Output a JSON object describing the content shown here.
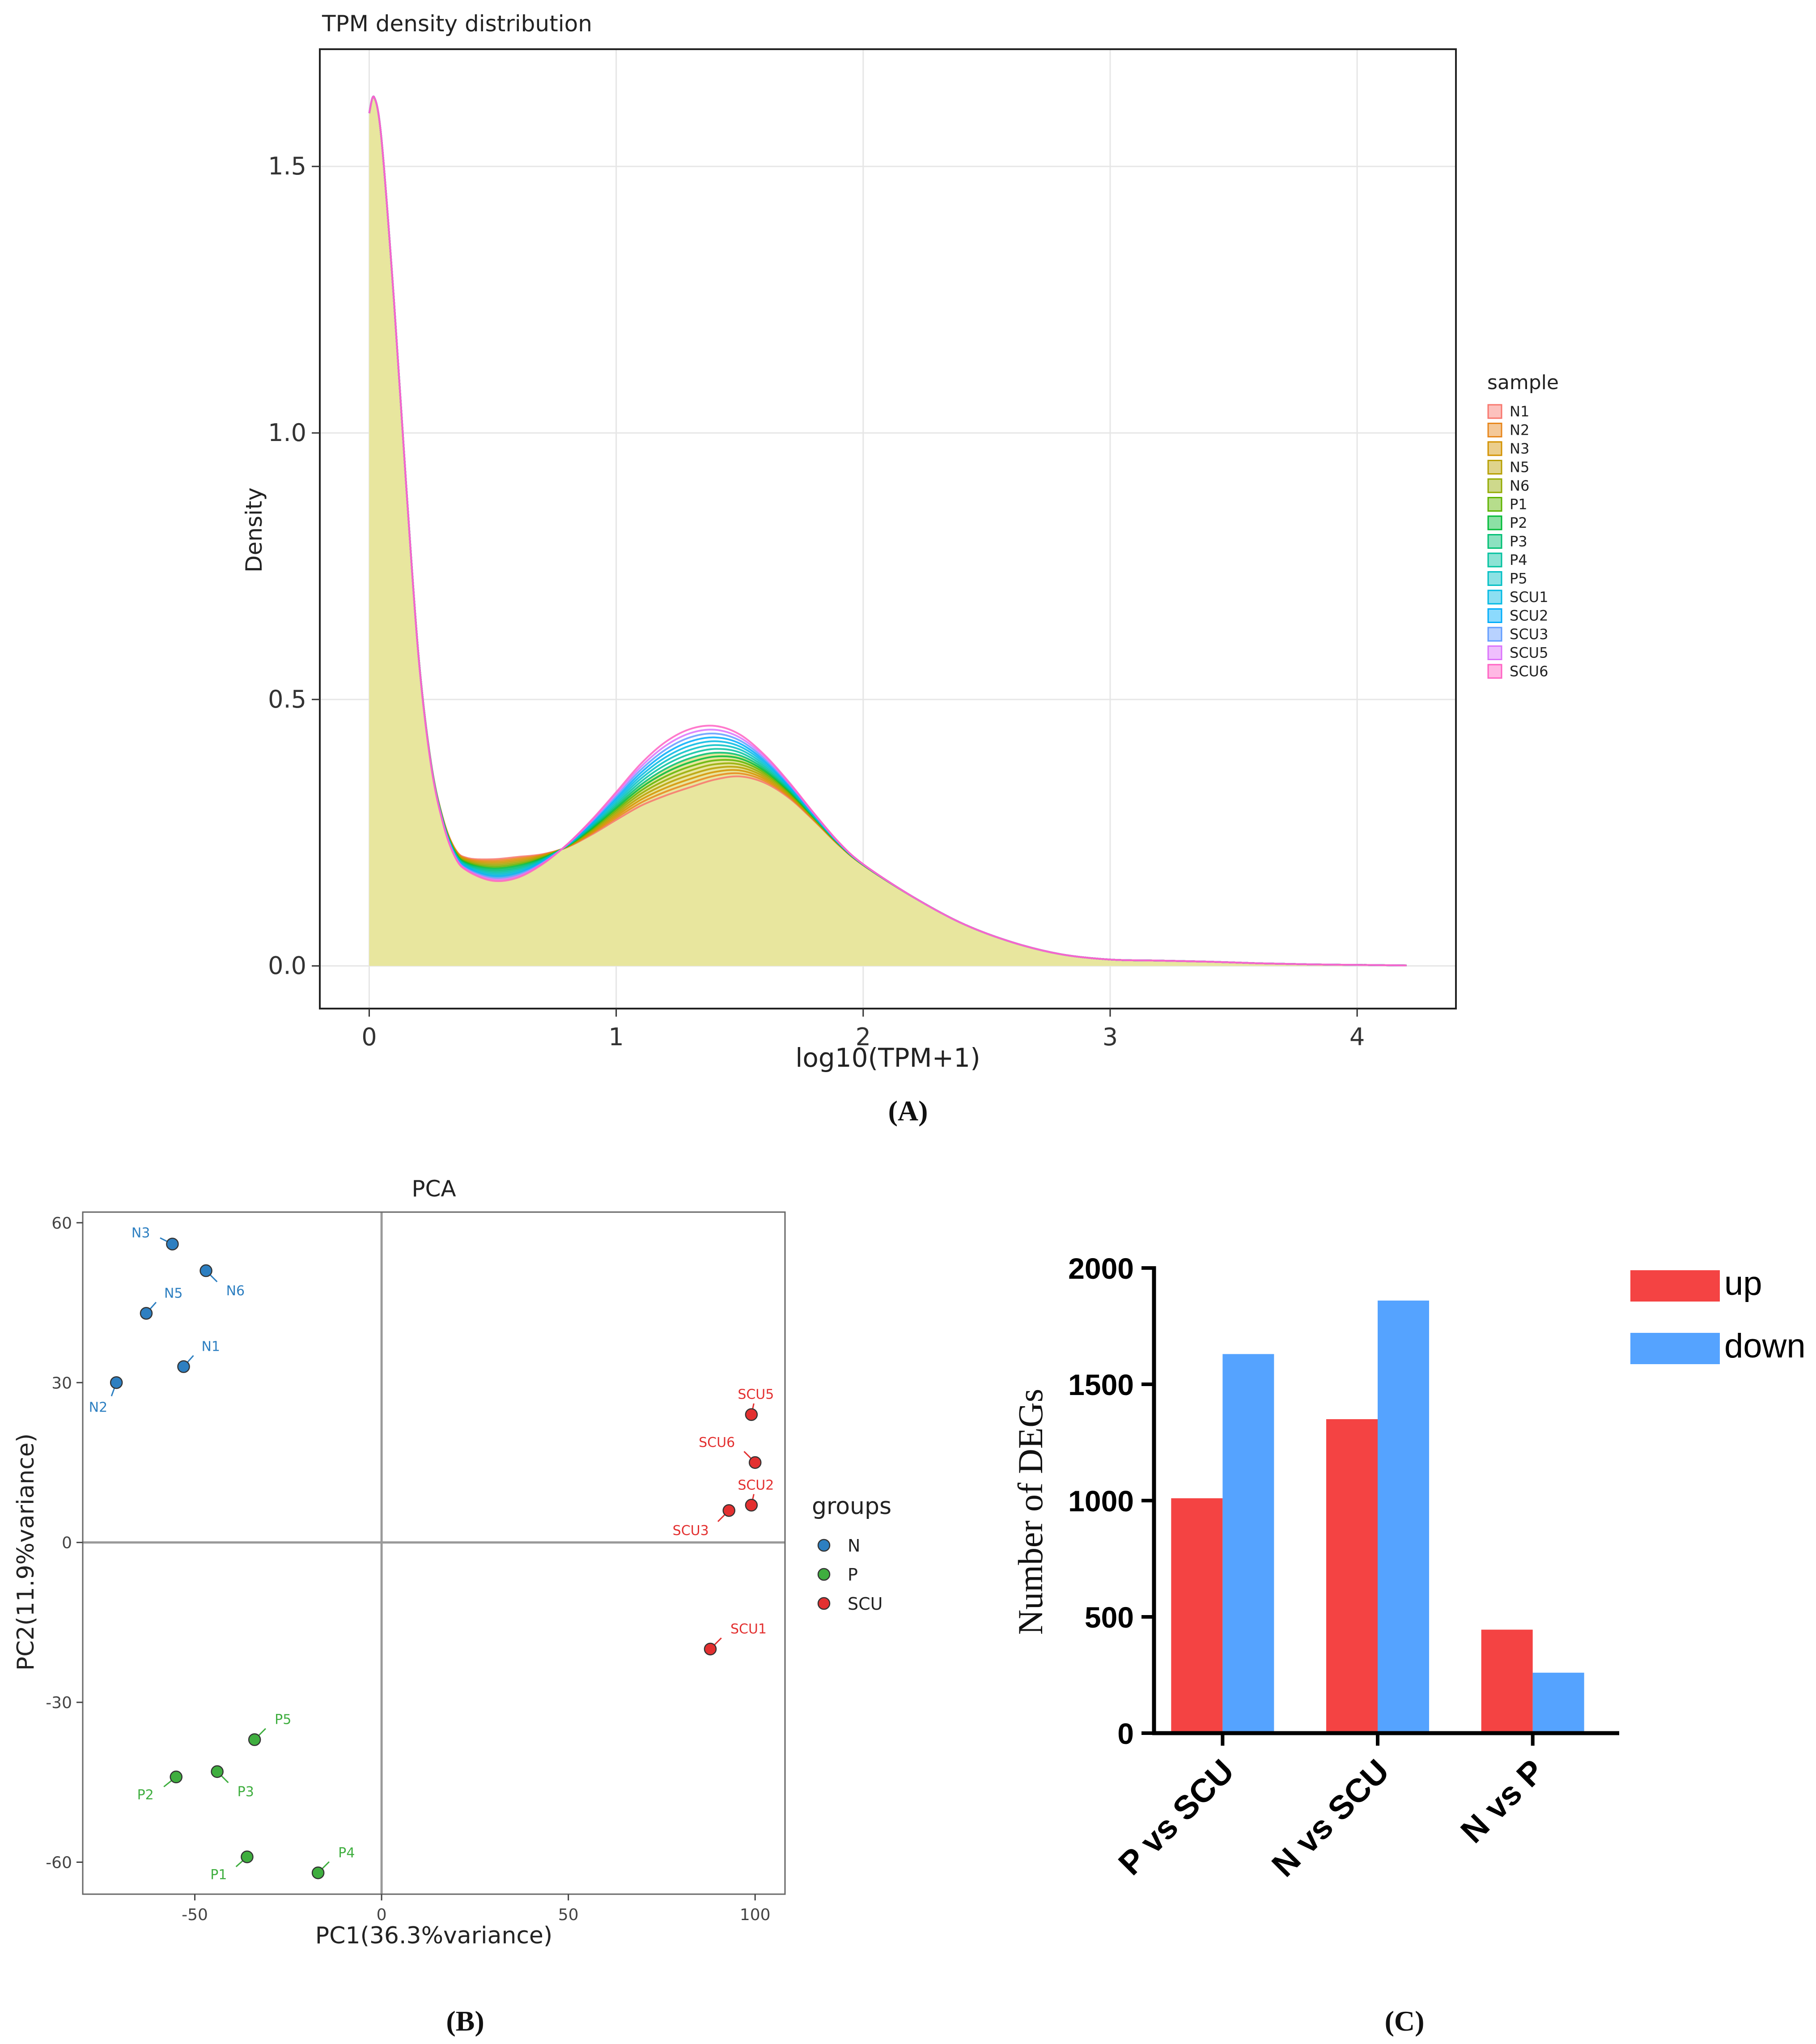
{
  "panel_labels": {
    "a": "(A)",
    "b": "(B)",
    "c": "(C)"
  },
  "colors": {
    "density_fill": "#e8e69e",
    "N": "#2d7fc1",
    "P": "#3fae3f",
    "SCU": "#e33030",
    "up": "#f44343",
    "down": "#55a3ff"
  },
  "chart_data": [
    {
      "type": "area",
      "title": "TPM density distribution",
      "xlabel": "log10(TPM+1)",
      "ylabel": "Density",
      "xlim": [
        -0.2,
        4.4
      ],
      "ylim": [
        -0.08,
        1.72
      ],
      "x_ticks": [
        "0",
        "1",
        "2",
        "3",
        "4"
      ],
      "y_ticks": [
        "0.0",
        "0.5",
        "1.0",
        "1.5"
      ],
      "grid": true,
      "legend_title": "sample",
      "legend_position": "right",
      "legend": [
        {
          "name": "N1",
          "color": "#f8766d"
        },
        {
          "name": "N2",
          "color": "#e7861b"
        },
        {
          "name": "N3",
          "color": "#d39200"
        },
        {
          "name": "N5",
          "color": "#b79f00"
        },
        {
          "name": "N6",
          "color": "#93aa00"
        },
        {
          "name": "P1",
          "color": "#5eb300"
        },
        {
          "name": "P2",
          "color": "#00ba38"
        },
        {
          "name": "P3",
          "color": "#00bf74"
        },
        {
          "name": "P4",
          "color": "#00c19f"
        },
        {
          "name": "P5",
          "color": "#00bfc4"
        },
        {
          "name": "SCU1",
          "color": "#00b9e3"
        },
        {
          "name": "SCU2",
          "color": "#00adfa"
        },
        {
          "name": "SCU3",
          "color": "#619cff"
        },
        {
          "name": "SCU5",
          "color": "#db72fb"
        },
        {
          "name": "SCU6",
          "color": "#ff61c3"
        }
      ],
      "x": [
        0,
        0.02,
        0.05,
        0.1,
        0.15,
        0.2,
        0.25,
        0.3,
        0.35,
        0.4,
        0.5,
        0.6,
        0.7,
        0.8,
        0.9,
        1.0,
        1.1,
        1.2,
        1.3,
        1.4,
        1.5,
        1.6,
        1.7,
        1.8,
        1.9,
        2.0,
        2.2,
        2.4,
        2.6,
        2.8,
        3.0,
        3.2,
        3.4,
        3.6,
        3.8,
        4.0,
        4.2
      ],
      "series": [
        {
          "values": [
            1.6,
            1.63,
            1.55,
            1.25,
            0.9,
            0.58,
            0.38,
            0.27,
            0.21,
            0.19,
            0.18,
            0.185,
            0.2,
            0.225,
            0.26,
            0.3,
            0.34,
            0.37,
            0.39,
            0.4,
            0.395,
            0.37,
            0.33,
            0.28,
            0.23,
            0.19,
            0.13,
            0.08,
            0.045,
            0.022,
            0.012,
            0.01,
            0.008,
            0.005,
            0.003,
            0.002,
            0.001
          ]
        }
      ]
    },
    {
      "type": "scatter",
      "title": "PCA",
      "xlabel": "PC1(36.3%variance)",
      "ylabel": "PC2(11.9%variance)",
      "xlim": [
        -80,
        108
      ],
      "ylim": [
        -66,
        62
      ],
      "x_ticks": [
        "-50",
        "0",
        "50",
        "100"
      ],
      "y_ticks": [
        "-60",
        "-30",
        "0",
        "30",
        "60"
      ],
      "legend_title": "groups",
      "legend_position": "right",
      "groups": [
        "N",
        "P",
        "SCU"
      ],
      "points": [
        {
          "label": "N1",
          "group": "N",
          "x": -53,
          "y": 33
        },
        {
          "label": "N2",
          "group": "N",
          "x": -71,
          "y": 30
        },
        {
          "label": "N3",
          "group": "N",
          "x": -56,
          "y": 56
        },
        {
          "label": "N5",
          "group": "N",
          "x": -63,
          "y": 43
        },
        {
          "label": "N6",
          "group": "N",
          "x": -47,
          "y": 51
        },
        {
          "label": "P1",
          "group": "P",
          "x": -36,
          "y": -59
        },
        {
          "label": "P2",
          "group": "P",
          "x": -55,
          "y": -44
        },
        {
          "label": "P3",
          "group": "P",
          "x": -44,
          "y": -43
        },
        {
          "label": "P4",
          "group": "P",
          "x": -17,
          "y": -62
        },
        {
          "label": "P5",
          "group": "P",
          "x": -34,
          "y": -37
        },
        {
          "label": "SCU1",
          "group": "SCU",
          "x": 88,
          "y": -20
        },
        {
          "label": "SCU2",
          "group": "SCU",
          "x": 99,
          "y": 7
        },
        {
          "label": "SCU3",
          "group": "SCU",
          "x": 93,
          "y": 6
        },
        {
          "label": "SCU5",
          "group": "SCU",
          "x": 99,
          "y": 24
        },
        {
          "label": "SCU6",
          "group": "SCU",
          "x": 100,
          "y": 15
        }
      ]
    },
    {
      "type": "bar",
      "ylabel": "Number of DEGs",
      "ylim": [
        0,
        2000
      ],
      "y_ticks": [
        "0",
        "500",
        "1000",
        "1500",
        "2000"
      ],
      "categories": [
        "P vs SCU",
        "N vs SCU",
        "N vs P"
      ],
      "legend_position": "top-right",
      "series": [
        {
          "name": "up",
          "values": [
            1010,
            1350,
            445
          ]
        },
        {
          "name": "down",
          "values": [
            1630,
            1860,
            260
          ]
        }
      ]
    }
  ]
}
